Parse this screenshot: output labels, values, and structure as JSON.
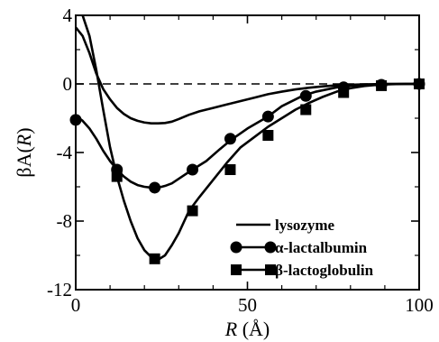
{
  "chart_data": {
    "type": "line",
    "xlabel_var": "R",
    "xlabel_unit": " (Å)",
    "ylabel_prefix": "βA(",
    "ylabel_var": "R",
    "ylabel_suffix": ")",
    "xlim": [
      0,
      100
    ],
    "ylim": [
      -12,
      4
    ],
    "xticks": [
      0,
      50,
      100
    ],
    "yticks": [
      4,
      0,
      -4,
      -8,
      -12
    ],
    "reference_line_y": 0,
    "legend_position": "bottom-right",
    "series": [
      {
        "name": "lysozyme",
        "marker": "none",
        "x": [
          0,
          2,
          4,
          6,
          8,
          10,
          12,
          14,
          16,
          18,
          20,
          22,
          24,
          26,
          28,
          30,
          33,
          36,
          40,
          44,
          48,
          52,
          56,
          60,
          64,
          68,
          72,
          76,
          80,
          85,
          90,
          95,
          100
        ],
        "y": [
          3.3,
          2.8,
          1.8,
          0.6,
          -0.3,
          -0.9,
          -1.4,
          -1.75,
          -2.0,
          -2.15,
          -2.25,
          -2.3,
          -2.3,
          -2.28,
          -2.2,
          -2.05,
          -1.8,
          -1.6,
          -1.4,
          -1.2,
          -1.0,
          -0.8,
          -0.6,
          -0.45,
          -0.32,
          -0.22,
          -0.14,
          -0.08,
          -0.05,
          -0.02,
          -0.01,
          0,
          0
        ]
      },
      {
        "name": "α-lactalbumin",
        "marker": "circle",
        "x": [
          0,
          1,
          2,
          4,
          6,
          8,
          10,
          12,
          14,
          16,
          18,
          20,
          22,
          24,
          26,
          28,
          31,
          34,
          38,
          42,
          45,
          50,
          56,
          60,
          66,
          70,
          76,
          80,
          86,
          90,
          96,
          100
        ],
        "y": [
          -2.1,
          -2.0,
          -2.15,
          -2.6,
          -3.2,
          -3.9,
          -4.5,
          -5.0,
          -5.4,
          -5.7,
          -5.9,
          -6.0,
          -6.05,
          -6.05,
          -5.95,
          -5.8,
          -5.4,
          -5.0,
          -4.5,
          -3.8,
          -3.3,
          -2.6,
          -1.9,
          -1.3,
          -0.7,
          -0.45,
          -0.2,
          -0.1,
          -0.05,
          0,
          0,
          0
        ],
        "markers_x": [
          0,
          12,
          23,
          34,
          45,
          56,
          67,
          78,
          89,
          100
        ],
        "markers_y": [
          -2.1,
          -5.0,
          -6.05,
          -5.0,
          -3.2,
          -1.9,
          -0.7,
          -0.2,
          -0.05,
          0
        ]
      },
      {
        "name": "β-lactoglobulin",
        "marker": "square",
        "x": [
          0,
          2,
          4,
          6,
          8,
          10,
          12,
          14,
          16,
          18,
          20,
          22,
          24,
          26,
          28,
          30,
          33,
          36,
          40,
          44,
          48,
          52,
          56,
          60,
          64,
          68,
          72,
          76,
          80,
          84,
          88,
          92,
          96,
          100
        ],
        "y": [
          4.5,
          4.0,
          2.8,
          0.8,
          -1.5,
          -3.7,
          -5.4,
          -6.8,
          -8.0,
          -9.0,
          -9.7,
          -10.1,
          -10.25,
          -10.0,
          -9.4,
          -8.7,
          -7.4,
          -6.6,
          -5.6,
          -4.6,
          -3.7,
          -3.1,
          -2.5,
          -2.0,
          -1.5,
          -1.1,
          -0.75,
          -0.45,
          -0.25,
          -0.12,
          -0.05,
          -0.02,
          0,
          0
        ],
        "markers_x": [
          12,
          23,
          34,
          45,
          56,
          67,
          78,
          89,
          100
        ],
        "markers_y": [
          -5.4,
          -10.2,
          -7.4,
          -5.0,
          -3.0,
          -1.5,
          -0.5,
          -0.1,
          0
        ]
      }
    ]
  }
}
